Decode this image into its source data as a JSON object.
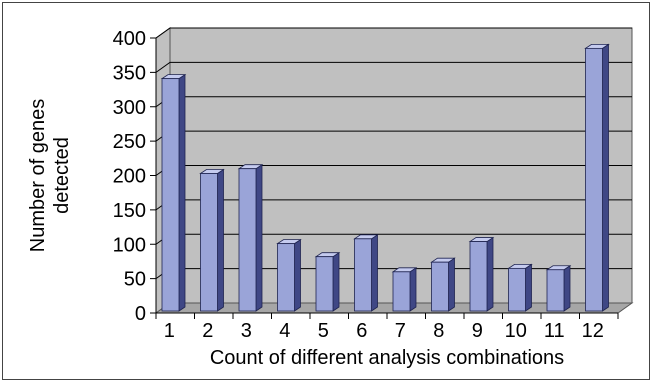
{
  "chart_data": {
    "type": "bar",
    "style": "3d-column",
    "categories": [
      "1",
      "2",
      "3",
      "4",
      "5",
      "6",
      "7",
      "8",
      "9",
      "10",
      "11",
      "12"
    ],
    "values": [
      338,
      200,
      207,
      98,
      79,
      105,
      57,
      71,
      101,
      62,
      60,
      382
    ],
    "title": "",
    "xlabel": "Count of different analysis combinations",
    "ylabel_lines": [
      "Number of genes",
      "detected"
    ],
    "ylim": [
      0,
      400
    ],
    "yticks": [
      "0",
      "50",
      "100",
      "150",
      "200",
      "250",
      "300",
      "350",
      "400"
    ],
    "grid": true,
    "legend": "none",
    "colors": {
      "bar_front": "#9aa4d8",
      "bar_side": "#3f4785",
      "bar_top": "#c5cbef",
      "back_wall": "#c0c0c0",
      "floor": "#a6a6a6",
      "gridline": "#000000"
    }
  }
}
